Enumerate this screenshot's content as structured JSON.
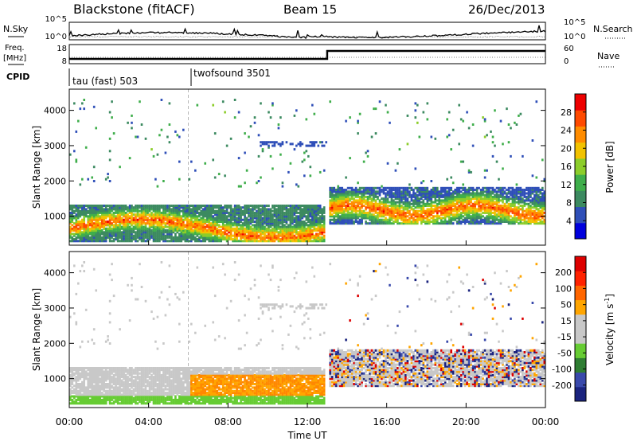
{
  "header": {
    "station": "Blackstone (fitACF)",
    "beam": "Beam 15",
    "date": "26/Dec/2013"
  },
  "side_labels": {
    "nsky": "N.Sky",
    "nsearch": "N.Search",
    "freq": "Freq.",
    "freq_unit": "[MHz]",
    "nave": "Nave",
    "cpid": "CPID"
  },
  "noise_axis": {
    "left_top": "10^5",
    "left_bottom": "10^0",
    "right_top": "10^5",
    "right_bottom": "10^0"
  },
  "freq_axis": {
    "left_ticks": [
      "18",
      "8"
    ],
    "right_ticks": [
      "60",
      "0"
    ]
  },
  "cpid_segments": [
    {
      "label": "tau (fast) 503",
      "start_hour": 0.0,
      "end_hour": 6.0
    },
    {
      "label": "twofsound 3501",
      "start_hour": 6.0,
      "end_hour": 24.0
    }
  ],
  "colors": {
    "power_scale": [
      "#0000dd",
      "#2f4fb8",
      "#3c8a60",
      "#3fae4b",
      "#8ccd2a",
      "#f2c200",
      "#ff8c00",
      "#ff4a00",
      "#ee0000"
    ],
    "velocity_scale": [
      "#1a237e",
      "#3949ab",
      "#2e7d32",
      "#66cc33",
      "#c8c8c8",
      "#c8c8c8",
      "#ffa500",
      "#ff6600",
      "#ff2200",
      "#dd0000"
    ]
  },
  "chart_data": [
    {
      "type": "heatmap",
      "panel": "power",
      "xlabel": "",
      "ylabel": "Slant Range [km]",
      "xlim": [
        0,
        24
      ],
      "ylim": [
        180,
        4600
      ],
      "y_ticks": [
        "1000",
        "2000",
        "3000",
        "4000"
      ],
      "colorbar": {
        "label": "Power [dB]",
        "ticks": [
          "28",
          "24",
          "20",
          "16",
          "12",
          "8",
          "4"
        ]
      },
      "features": [
        {
          "name": "lower band",
          "start_hour": 0.0,
          "end_hour": 12.8,
          "range_km": [
            300,
            1300
          ],
          "level": "high"
        },
        {
          "name": "late band",
          "start_hour": 13.0,
          "end_hour": 23.9,
          "range_km": [
            800,
            1750
          ],
          "level": "high"
        }
      ]
    },
    {
      "type": "heatmap",
      "panel": "velocity",
      "xlabel": "Time UT",
      "ylabel": "Slant Range [km]",
      "xlim": [
        0,
        24
      ],
      "ylim": [
        180,
        4600
      ],
      "x_ticks": [
        "00:00",
        "04:00",
        "08:00",
        "12:00",
        "16:00",
        "20:00",
        "00:00"
      ],
      "y_ticks": [
        "1000",
        "2000",
        "3000",
        "4000"
      ],
      "colorbar": {
        "label": "Velocity [m s^-1]",
        "ticks": [
          "200",
          "100",
          "50",
          "15",
          "-15",
          "-50",
          "-100",
          "-200"
        ]
      }
    }
  ],
  "axis_titles": {
    "slant_range": "Slant Range [km]",
    "time": "Time UT",
    "power": "Power [dB]",
    "velocity": "Velocity [m s",
    "velocity_exp": "-1",
    "velocity_end": "]"
  }
}
